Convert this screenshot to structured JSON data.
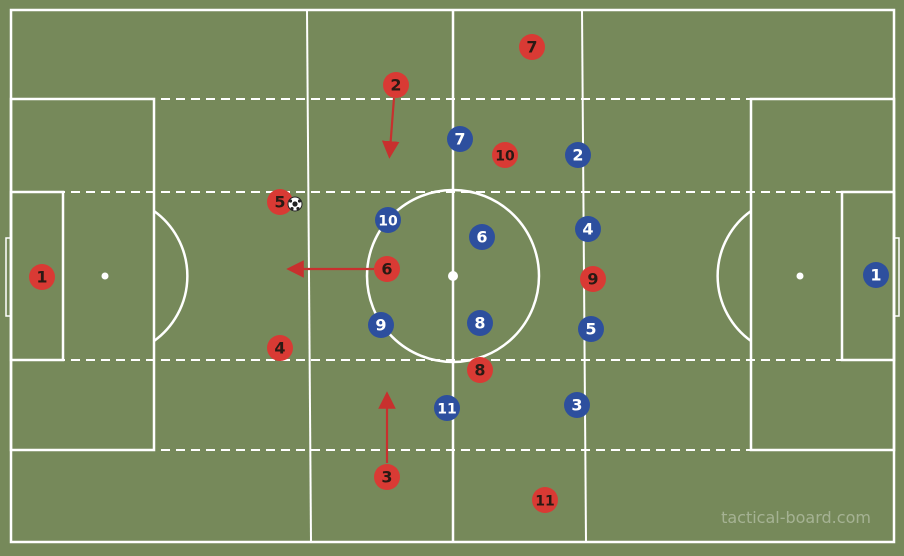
{
  "watermark": "tactical-board.com",
  "colors": {
    "pitch": "#76895a",
    "line": "#ffffff",
    "red_team": "#d93a34",
    "blue_team": "#2d4f9e",
    "arrow": "#c8302e"
  },
  "ball_icon": "soccer-ball-icon",
  "red_players": [
    {
      "number": "1"
    },
    {
      "number": "2"
    },
    {
      "number": "3"
    },
    {
      "number": "4"
    },
    {
      "number": "5"
    },
    {
      "number": "6"
    },
    {
      "number": "7"
    },
    {
      "number": "8"
    },
    {
      "number": "9"
    },
    {
      "number": "10"
    },
    {
      "number": "11"
    }
  ],
  "blue_players": [
    {
      "number": "1"
    },
    {
      "number": "2"
    },
    {
      "number": "3"
    },
    {
      "number": "4"
    },
    {
      "number": "5"
    },
    {
      "number": "6"
    },
    {
      "number": "7"
    },
    {
      "number": "8"
    },
    {
      "number": "9"
    },
    {
      "number": "10"
    },
    {
      "number": "11"
    }
  ]
}
